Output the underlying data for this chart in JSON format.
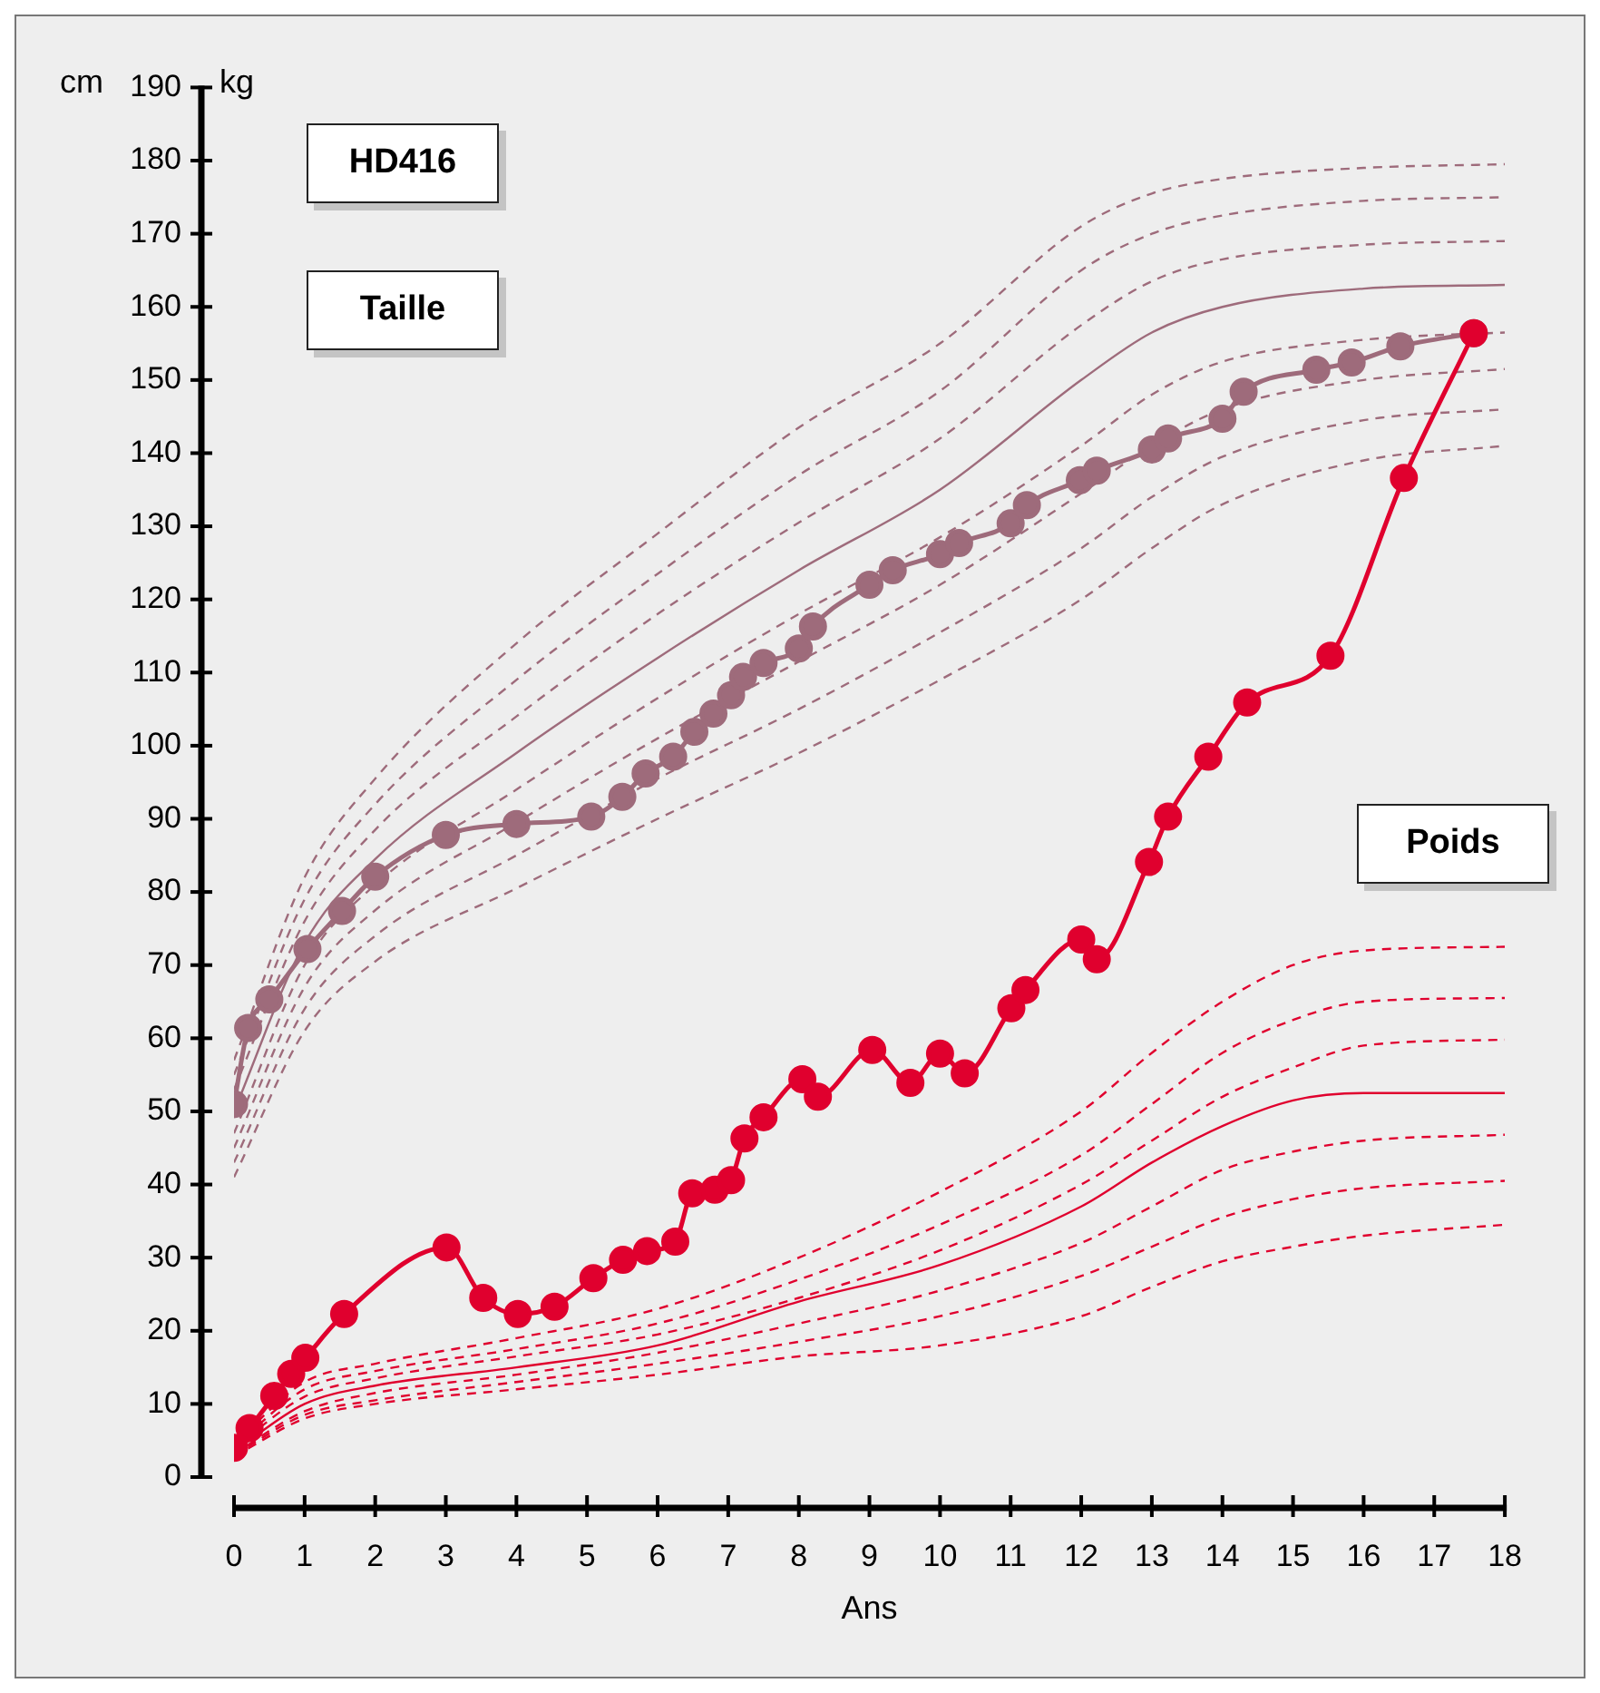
{
  "chart_data": {
    "type": "line",
    "xlabel": "Ans",
    "ylabel": "cm",
    "annotations": [
      "kg",
      "HD416",
      "Taille",
      "Poids"
    ],
    "xlim": [
      0,
      18
    ],
    "xticks": [
      0,
      1,
      2,
      3,
      4,
      5,
      6,
      7,
      8,
      9,
      10,
      11,
      12,
      13,
      14,
      15,
      16,
      17,
      18
    ],
    "ylim": [
      0,
      190
    ],
    "yticks": [
      0,
      10,
      20,
      30,
      40,
      50,
      60,
      70,
      80,
      90,
      100,
      110,
      120,
      130,
      140,
      150,
      160,
      170,
      180,
      190
    ],
    "grid": false,
    "legend": false,
    "series": [
      {
        "color": "#9e6b7b",
        "line_style": "dashed",
        "marker": "none",
        "x": [
          0,
          1,
          2,
          4,
          6,
          8,
          10,
          12,
          13,
          14,
          16,
          18
        ],
        "values": [
          57,
          82,
          95.5,
          114,
          129,
          143.5,
          155,
          171,
          175.5,
          177.5,
          179,
          179.5
        ]
      },
      {
        "color": "#9e6b7b",
        "line_style": "dashed",
        "marker": "none",
        "x": [
          0,
          1,
          2,
          4,
          6,
          8,
          10,
          12,
          13,
          14,
          16,
          18
        ],
        "values": [
          55,
          79,
          92,
          109,
          123.5,
          137,
          148.5,
          165,
          170,
          172.5,
          174.5,
          175
        ]
      },
      {
        "color": "#9e6b7b",
        "line_style": "dashed",
        "marker": "none",
        "x": [
          0,
          1,
          2,
          4,
          6,
          8,
          10,
          12,
          13,
          14,
          16,
          18
        ],
        "values": [
          53,
          76,
          88.5,
          104,
          118,
          130.5,
          142,
          157.5,
          163.5,
          166.5,
          168.5,
          169
        ]
      },
      {
        "color": "#9e6b7b",
        "line_style": "solid",
        "marker": "none",
        "x": [
          0,
          1,
          2,
          4,
          6,
          8,
          10,
          12,
          13,
          14,
          16,
          18
        ],
        "values": [
          50,
          73,
          84.5,
          99,
          112,
          124,
          135,
          150,
          156.5,
          160,
          162.5,
          163
        ]
      },
      {
        "color": "#9e6b7b",
        "line_style": "dashed",
        "marker": "none",
        "x": [
          0,
          1,
          2,
          4,
          6,
          8,
          10,
          12,
          13,
          14,
          16,
          18
        ],
        "values": [
          47,
          70,
          81,
          94,
          106.5,
          118,
          128.5,
          141,
          148,
          152.5,
          155.5,
          156.5
        ]
      },
      {
        "color": "#9e6b7b",
        "line_style": "dashed",
        "marker": "none",
        "x": [
          0,
          1,
          2,
          4,
          6,
          8,
          10,
          12,
          13,
          14,
          16,
          18
        ],
        "values": [
          45,
          67,
          77.5,
          89.5,
          101,
          111.5,
          122,
          134.5,
          141,
          146,
          150,
          151.5
        ]
      },
      {
        "color": "#9e6b7b",
        "line_style": "dashed",
        "marker": "none",
        "x": [
          0,
          1,
          2,
          4,
          6,
          8,
          10,
          12,
          13,
          14,
          16,
          18
        ],
        "values": [
          43,
          64,
          74,
          85,
          95.5,
          105,
          115.5,
          127,
          134,
          139.5,
          144.5,
          146
        ]
      },
      {
        "color": "#9e6b7b",
        "line_style": "dashed",
        "marker": "none",
        "x": [
          0,
          1,
          2,
          4,
          6,
          8,
          10,
          12,
          13,
          14,
          16,
          18
        ],
        "values": [
          41,
          61,
          70.5,
          80.5,
          90,
          99,
          109,
          120,
          127,
          133,
          139,
          141
        ]
      },
      {
        "color": "#e0002e",
        "line_style": "dashed",
        "marker": "none",
        "x": [
          0,
          1,
          2,
          4,
          6,
          8,
          10,
          12,
          13,
          14,
          15,
          16,
          18
        ],
        "values": [
          4.5,
          13,
          15.5,
          19,
          23,
          30,
          39,
          50,
          58,
          65,
          70,
          72,
          72.5
        ]
      },
      {
        "color": "#e0002e",
        "line_style": "dashed",
        "marker": "none",
        "x": [
          0,
          1,
          2,
          4,
          6,
          8,
          10,
          12,
          13,
          14,
          15,
          16,
          18
        ],
        "values": [
          4.2,
          12,
          14.5,
          17.5,
          21,
          27,
          34.5,
          44,
          51,
          58,
          62.5,
          65,
          65.5
        ]
      },
      {
        "color": "#e0002e",
        "line_style": "dashed",
        "marker": "none",
        "x": [
          0,
          1,
          2,
          4,
          6,
          8,
          10,
          12,
          13,
          14,
          15,
          16,
          18
        ],
        "values": [
          4,
          11,
          13.5,
          16.5,
          19.5,
          24.5,
          31,
          40,
          46,
          52,
          56,
          59,
          59.8
        ]
      },
      {
        "color": "#e0002e",
        "line_style": "solid",
        "marker": "none",
        "x": [
          0,
          1,
          2,
          4,
          6,
          8,
          10,
          12,
          13,
          14,
          15,
          16,
          18
        ],
        "values": [
          3.5,
          10,
          12.5,
          15,
          18,
          24,
          29,
          37,
          43,
          48,
          51.5,
          52.5,
          52.5
        ]
      },
      {
        "color": "#e0002e",
        "line_style": "dashed",
        "marker": "none",
        "x": [
          0,
          1,
          2,
          4,
          6,
          8,
          10,
          12,
          13,
          14,
          15,
          16,
          18
        ],
        "values": [
          3.2,
          9,
          11.5,
          14,
          17,
          21,
          25.5,
          32,
          37,
          42,
          44.5,
          46,
          46.8
        ]
      },
      {
        "color": "#e0002e",
        "line_style": "dashed",
        "marker": "none",
        "x": [
          0,
          1,
          2,
          4,
          6,
          8,
          10,
          12,
          13,
          14,
          15,
          16,
          18
        ],
        "values": [
          3,
          8.5,
          10.5,
          13,
          15.5,
          18.5,
          22,
          27.5,
          31.5,
          35.5,
          38,
          39.5,
          40.5
        ]
      },
      {
        "color": "#e0002e",
        "line_style": "dashed",
        "marker": "none",
        "x": [
          0,
          1,
          2,
          4,
          6,
          8,
          10,
          12,
          13,
          14,
          15,
          16,
          18
        ],
        "values": [
          2.8,
          8,
          10,
          12,
          14,
          16.5,
          18,
          22,
          26,
          29.5,
          31.5,
          33,
          34.5
        ]
      },
      {
        "color": "#9e6b7b",
        "line_style": "solid",
        "marker": "circle",
        "x": [
          0,
          0.2,
          0.5,
          1.04,
          1.53,
          2,
          3,
          4,
          5.06,
          5.5,
          5.83,
          6.22,
          6.52,
          6.79,
          7.04,
          7.21,
          7.5,
          8,
          8.2,
          9,
          9.33,
          10,
          10.27,
          11,
          11.23,
          11.98,
          12.22,
          13,
          13.23,
          14,
          14.3,
          15.33,
          15.83,
          16.52,
          17.56
        ],
        "values": [
          51,
          61.4,
          65.3,
          72.2,
          77.4,
          82.1,
          87.8,
          89.3,
          90.3,
          93,
          96.2,
          98.5,
          101.9,
          104.4,
          106.9,
          109.4,
          111.3,
          113.3,
          116.3,
          122,
          124,
          126.2,
          127.7,
          130.4,
          132.9,
          136.3,
          137.6,
          140.5,
          142,
          144.7,
          148.4,
          151.4,
          152.4,
          154.6,
          156.4
        ]
      },
      {
        "color": "#e0002e",
        "line_style": "solid",
        "marker": "circle",
        "x": [
          0,
          0.22,
          0.57,
          0.81,
          1.01,
          1.56,
          3.01,
          3.53,
          4.02,
          4.54,
          5.09,
          5.51,
          5.85,
          6.25,
          6.49,
          6.81,
          7.04,
          7.23,
          7.5,
          8.05,
          8.27,
          9.04,
          9.58,
          10,
          10.35,
          11.01,
          11.21,
          12,
          12.22,
          12.96,
          13.23,
          13.8,
          14.35,
          15.53,
          16.57,
          17.56
        ],
        "values": [
          4,
          6.7,
          11.1,
          14.1,
          16.3,
          22.3,
          31.4,
          24.5,
          22.3,
          23.3,
          27.2,
          29.7,
          30.9,
          32.2,
          38.8,
          39.3,
          40.6,
          46.3,
          49.2,
          54.4,
          52,
          58.4,
          53.9,
          57.9,
          55.2,
          64.1,
          66.6,
          73.5,
          70.8,
          84.1,
          90.3,
          98.5,
          105.9,
          112.3,
          136.6,
          156.4
        ]
      }
    ]
  }
}
